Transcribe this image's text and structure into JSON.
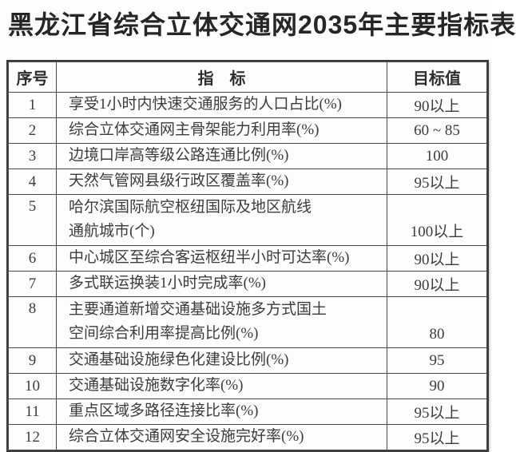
{
  "title": "黑龙江省综合立体交通网2035年主要指标表",
  "table": {
    "columns": [
      "序号",
      "指　标",
      "目标值"
    ],
    "rows": [
      {
        "no": "1",
        "indicator": "享受1小时内快速交通服务的人口占比(%)",
        "target": "90以上"
      },
      {
        "no": "2",
        "indicator": "综合立体交通网主骨架能力利用率(%)",
        "target": "60 ~ 85"
      },
      {
        "no": "3",
        "indicator": "边境口岸高等级公路连通比例(%)",
        "target": "100"
      },
      {
        "no": "4",
        "indicator": "天然气管网县级行政区覆盖率(%)",
        "target": "95以上"
      },
      {
        "no": "5",
        "indicator": "哈尔滨国际航空枢纽国际及地区航线\n通航城市(个)",
        "target": "100以上",
        "two_line": true
      },
      {
        "no": "6",
        "indicator": "中心城区至综合客运枢纽半小时可达率(%)",
        "target": "90以上"
      },
      {
        "no": "7",
        "indicator": "多式联运换装1小时完成率(%)",
        "target": "90以上"
      },
      {
        "no": "8",
        "indicator": "主要通道新增交通基础设施多方式国土\n空间综合利用率提高比例(%)",
        "target": "80",
        "two_line": true
      },
      {
        "no": "9",
        "indicator": "交通基础设施绿色化建设比例(%)",
        "target": "95"
      },
      {
        "no": "10",
        "indicator": "交通基础设施数字化率(%)",
        "target": "90"
      },
      {
        "no": "11",
        "indicator": "重点区域多路径连接比率(%)",
        "target": "95以上"
      },
      {
        "no": "12",
        "indicator": "综合立体交通网安全设施完好率(%)",
        "target": "95以上"
      }
    ]
  },
  "colors": {
    "background": "#fdfdfd",
    "title": "#262626",
    "text": "#3c3c3c",
    "border_outer": "#3c3c3c",
    "border_inner": "#4a4a4a"
  }
}
